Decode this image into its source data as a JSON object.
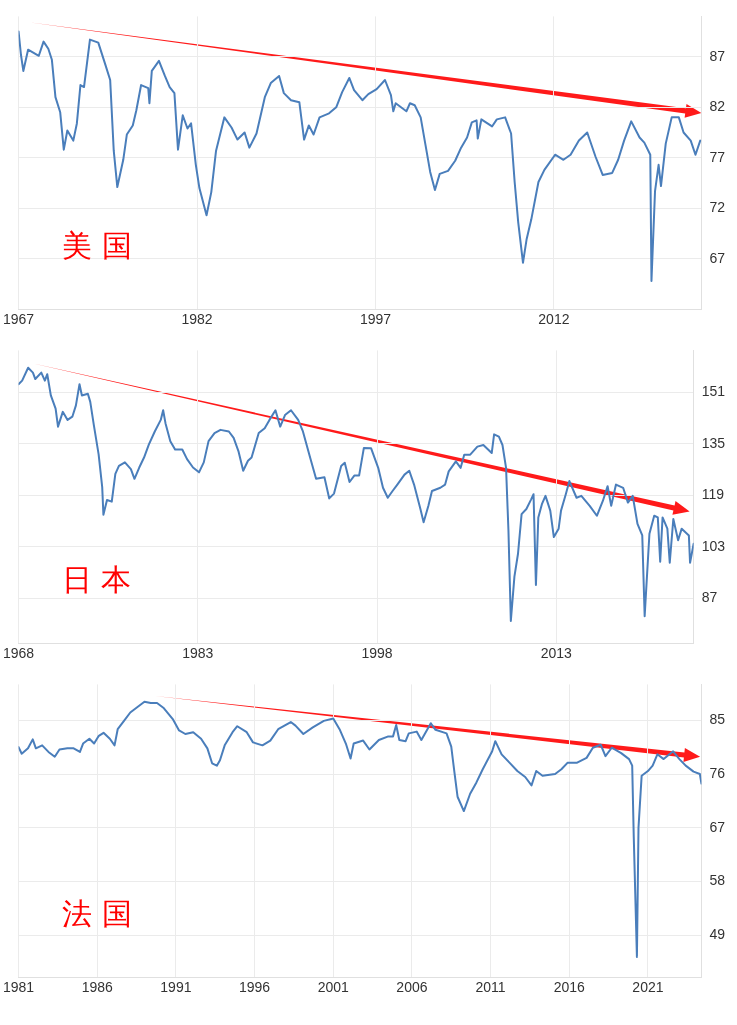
{
  "chart_data": [
    {
      "type": "line",
      "annotations": [
        "美 国"
      ],
      "xlim": [
        1967,
        2024.4
      ],
      "xticks": [
        1967,
        1982,
        1997,
        2012
      ],
      "ylim": [
        62,
        91
      ],
      "yticks": [
        67,
        72,
        77,
        82,
        87
      ],
      "grid": true,
      "legend": false,
      "marker": "none",
      "line_style": "solid",
      "series": [
        {
          "color": "#4a7ebb",
          "x": [
            1967.0,
            1967.2,
            1967.4,
            1967.8,
            1968.7,
            1969.1,
            1969.5,
            1969.8,
            1970.1,
            1970.5,
            1970.8,
            1971.1,
            1971.6,
            1971.9,
            1972.2,
            1972.5,
            1973.0,
            1973.7,
            1974.3,
            1974.7,
            1975.0,
            1975.3,
            1975.8,
            1976.1,
            1976.6,
            1976.9,
            1977.3,
            1977.9,
            1978.0,
            1978.2,
            1978.8,
            1979.3,
            1979.7,
            1980.1,
            1980.4,
            1980.8,
            1981.2,
            1981.5,
            1981.9,
            1982.2,
            1982.8,
            1983.2,
            1983.6,
            1984.3,
            1984.9,
            1985.4,
            1986.0,
            1986.4,
            1987.0,
            1987.7,
            1988.2,
            1988.9,
            1989.3,
            1989.9,
            1990.6,
            1991.0,
            1991.4,
            1991.8,
            1992.3,
            1993.1,
            1993.7,
            1994.2,
            1994.8,
            1995.2,
            1995.9,
            1996.4,
            1997.1,
            1997.8,
            1998.3,
            1998.5,
            1998.7,
            1999.6,
            1999.9,
            2000.3,
            2000.8,
            2001.2,
            2001.6,
            2002.0,
            2002.4,
            2003.1,
            2003.7,
            2004.2,
            2004.7,
            2005.1,
            2005.5,
            2005.6,
            2005.9,
            2006.8,
            2007.2,
            2007.9,
            2008.4,
            2008.7,
            2009.0,
            2009.4,
            2009.7,
            2010.1,
            2010.7,
            2011.2,
            2012.1,
            2012.8,
            2013.4,
            2014.1,
            2014.8,
            2015.5,
            2016.1,
            2016.9,
            2017.4,
            2017.9,
            2018.5,
            2019.2,
            2019.6,
            2020.1,
            2020.2,
            2020.5,
            2020.8,
            2021.0,
            2021.4,
            2021.9,
            2022.5,
            2022.9,
            2023.5,
            2023.9,
            2024.3
          ],
          "values": [
            89.5,
            87.2,
            85.6,
            87.7,
            87.1,
            88.5,
            87.8,
            86.7,
            83.0,
            81.5,
            77.8,
            79.7,
            78.7,
            80.4,
            84.2,
            84.0,
            88.7,
            88.4,
            86.2,
            84.7,
            77.7,
            74.1,
            76.8,
            79.3,
            80.2,
            81.7,
            84.2,
            83.9,
            82.4,
            85.6,
            86.6,
            85.1,
            84.0,
            83.4,
            77.8,
            81.2,
            79.9,
            80.4,
            76.3,
            74.0,
            71.3,
            73.6,
            77.7,
            81.0,
            80.0,
            78.8,
            79.5,
            78.0,
            79.4,
            83.0,
            84.4,
            85.1,
            83.4,
            82.7,
            82.5,
            78.8,
            80.2,
            79.3,
            81.0,
            81.4,
            82.0,
            83.5,
            84.9,
            83.7,
            82.7,
            83.3,
            83.8,
            84.7,
            83.2,
            81.6,
            82.4,
            81.6,
            82.4,
            82.2,
            81.0,
            78.3,
            75.6,
            73.8,
            75.4,
            75.7,
            76.7,
            78.0,
            79.0,
            80.5,
            80.7,
            78.9,
            80.8,
            80.1,
            80.8,
            81.0,
            79.4,
            74.6,
            70.6,
            66.6,
            68.9,
            70.9,
            74.6,
            75.8,
            77.3,
            76.8,
            77.3,
            78.7,
            79.5,
            77.1,
            75.3,
            75.5,
            76.8,
            78.7,
            80.6,
            79.0,
            78.5,
            77.3,
            64.8,
            73.7,
            76.3,
            74.2,
            78.4,
            81.0,
            81.0,
            79.5,
            78.7,
            77.3,
            78.7
          ]
        }
      ]
    },
    {
      "type": "line",
      "annotations": [
        "日 本"
      ],
      "xlim": [
        1968,
        2024.5
      ],
      "xticks": [
        1968,
        1983,
        1998,
        2013
      ],
      "ylim": [
        73,
        164
      ],
      "yticks": [
        87,
        103,
        119,
        135,
        151
      ],
      "grid": true,
      "legend": false,
      "marker": "none",
      "line_style": "solid",
      "series": [
        {
          "color": "#4a7ebb",
          "x": [
            1968.0,
            1968.3,
            1968.8,
            1969.2,
            1969.4,
            1969.9,
            1970.2,
            1970.4,
            1970.7,
            1971.1,
            1971.3,
            1971.7,
            1972.1,
            1972.5,
            1972.8,
            1973.1,
            1973.3,
            1973.8,
            1974.0,
            1974.3,
            1974.7,
            1975.0,
            1975.1,
            1975.4,
            1975.8,
            1976.1,
            1976.4,
            1976.9,
            1977.4,
            1977.7,
            1978.1,
            1978.5,
            1978.9,
            1979.4,
            1979.9,
            1980.1,
            1980.3,
            1980.7,
            1981.1,
            1981.7,
            1982.1,
            1982.6,
            1983.1,
            1983.5,
            1983.9,
            1984.4,
            1984.9,
            1985.6,
            1986.0,
            1986.4,
            1986.8,
            1987.2,
            1987.5,
            1988.1,
            1988.6,
            1989.0,
            1989.5,
            1989.9,
            1990.3,
            1990.8,
            1991.4,
            1991.8,
            1992.4,
            1992.9,
            1993.6,
            1994.0,
            1994.4,
            1995.0,
            1995.3,
            1995.7,
            1996.1,
            1996.5,
            1996.9,
            1997.5,
            1998.1,
            1998.5,
            1998.9,
            1999.3,
            1999.7,
            2000.3,
            2000.7,
            2001.1,
            2001.6,
            2001.9,
            2002.3,
            2002.6,
            2003.3,
            2003.7,
            2004.0,
            2004.6,
            2005.0,
            2005.3,
            2005.8,
            2006.4,
            2006.9,
            2007.6,
            2007.8,
            2008.2,
            2008.5,
            2008.8,
            2009.0,
            2009.2,
            2009.5,
            2009.8,
            2010.1,
            2010.5,
            2010.9,
            2011.1,
            2011.3,
            2011.5,
            2011.8,
            2012.1,
            2012.5,
            2012.8,
            2013.2,
            2013.4,
            2013.8,
            2014.1,
            2014.7,
            2015.1,
            2015.8,
            2016.4,
            2016.9,
            2017.3,
            2017.6,
            2018.0,
            2018.6,
            2019.0,
            2019.4,
            2019.8,
            2020.2,
            2020.4,
            2020.8,
            2021.2,
            2021.5,
            2021.7,
            2021.9,
            2022.3,
            2022.5,
            2022.8,
            2023.2,
            2023.5,
            2024.1,
            2024.2,
            2024.5
          ],
          "values": [
            153.5,
            154.6,
            158.6,
            157.1,
            155.1,
            157.1,
            154.6,
            156.6,
            150.0,
            145.9,
            140.3,
            144.9,
            142.4,
            143.4,
            146.9,
            153.5,
            150.0,
            150.5,
            148.0,
            140.8,
            131.7,
            121.5,
            112.9,
            117.5,
            117.0,
            125.6,
            128.1,
            129.2,
            127.1,
            124.1,
            127.6,
            130.7,
            134.7,
            138.8,
            142.4,
            145.4,
            141.3,
            135.8,
            133.2,
            133.2,
            130.2,
            127.6,
            126.1,
            129.2,
            135.8,
            138.3,
            139.3,
            138.8,
            136.8,
            132.7,
            126.6,
            129.7,
            130.7,
            138.3,
            139.8,
            142.4,
            145.4,
            140.3,
            143.9,
            145.4,
            142.4,
            138.8,
            130.7,
            124.1,
            124.6,
            118.0,
            119.5,
            128.1,
            129.1,
            123.1,
            125.1,
            125.1,
            133.7,
            133.6,
            127.5,
            121.3,
            118.2,
            120.3,
            122.3,
            125.4,
            126.6,
            122.3,
            115.2,
            110.6,
            115.7,
            120.3,
            121.3,
            122.3,
            126.4,
            129.5,
            127.5,
            131.6,
            131.6,
            134.1,
            134.6,
            132.1,
            137.9,
            137.2,
            134.6,
            127.5,
            108.0,
            79.9,
            93.7,
            100.8,
            113.1,
            114.7,
            117.7,
            119.3,
            91.1,
            112.1,
            116.2,
            118.8,
            114.2,
            106.0,
            108.6,
            114.2,
            119.3,
            123.4,
            118.2,
            118.8,
            115.7,
            112.6,
            117.2,
            121.8,
            115.7,
            122.3,
            121.3,
            116.7,
            118.8,
            110.1,
            106.5,
            81.4,
            107.0,
            112.6,
            112.1,
            98.3,
            112.1,
            108.6,
            98.0,
            111.6,
            105.0,
            108.6,
            106.5,
            98.0,
            103.9
          ]
        }
      ]
    },
    {
      "type": "line",
      "annotations": [
        "法 国"
      ],
      "xlim": [
        1981,
        2024.4
      ],
      "xticks": [
        1981,
        1986,
        1991,
        1996,
        2001,
        2006,
        2011,
        2016,
        2021
      ],
      "ylim": [
        42,
        91
      ],
      "yticks": [
        49,
        58,
        67,
        76,
        85
      ],
      "grid": true,
      "legend": false,
      "marker": "none",
      "line_style": "solid",
      "series": [
        {
          "color": "#4a7ebb",
          "x": [
            1981.0,
            1981.2,
            1981.6,
            1981.9,
            1982.1,
            1982.5,
            1982.9,
            1983.3,
            1983.6,
            1984.1,
            1984.5,
            1984.9,
            1985.1,
            1985.5,
            1985.8,
            1986.1,
            1986.4,
            1986.8,
            1987.1,
            1987.3,
            1987.7,
            1988.1,
            1988.6,
            1989.0,
            1989.4,
            1989.8,
            1990.2,
            1990.8,
            1991.2,
            1991.6,
            1992.1,
            1992.6,
            1993.0,
            1993.3,
            1993.6,
            1993.8,
            1994.1,
            1994.6,
            1994.9,
            1995.5,
            1995.9,
            1996.5,
            1997.0,
            1997.5,
            1998.3,
            1998.6,
            1999.1,
            1999.7,
            2000.4,
            2001.0,
            2001.4,
            2001.8,
            2002.1,
            2002.3,
            2002.9,
            2003.3,
            2003.9,
            2004.5,
            2004.8,
            2005.0,
            2005.2,
            2005.6,
            2005.8,
            2006.3,
            2006.6,
            2007.2,
            2007.5,
            2008.2,
            2008.5,
            2008.7,
            2008.9,
            2009.3,
            2009.7,
            2010.1,
            2010.5,
            2011.1,
            2011.3,
            2011.7,
            2012.2,
            2012.7,
            2013.2,
            2013.6,
            2013.9,
            2014.3,
            2015.1,
            2015.5,
            2015.9,
            2016.5,
            2017.1,
            2017.5,
            2018.0,
            2018.3,
            2018.7,
            2019.3,
            2019.8,
            2020.0,
            2020.1,
            2020.3,
            2020.4,
            2020.6,
            2021.0,
            2021.3,
            2021.6,
            2022.0,
            2022.6,
            2023.0,
            2023.4,
            2023.9,
            2024.3,
            2024.4
          ],
          "values": [
            80.5,
            79.4,
            80.3,
            81.8,
            80.3,
            80.8,
            79.7,
            78.9,
            80.1,
            80.3,
            80.3,
            79.7,
            81.1,
            81.9,
            81.1,
            82.4,
            82.9,
            81.9,
            80.8,
            83.5,
            84.9,
            86.3,
            87.3,
            88.1,
            87.9,
            87.9,
            87.1,
            85.2,
            83.3,
            82.7,
            83.0,
            81.9,
            80.3,
            77.8,
            77.4,
            78.3,
            80.8,
            83.0,
            84.0,
            83.0,
            81.3,
            80.8,
            81.6,
            83.5,
            84.7,
            84.1,
            82.7,
            83.8,
            84.9,
            85.3,
            83.5,
            81.1,
            78.6,
            81.1,
            81.6,
            80.1,
            81.7,
            82.3,
            82.3,
            84.2,
            81.7,
            81.5,
            82.8,
            83.1,
            81.7,
            84.5,
            83.4,
            82.8,
            80.6,
            76.3,
            72.2,
            69.8,
            72.7,
            74.6,
            76.8,
            79.8,
            81.5,
            79.3,
            77.9,
            76.5,
            75.5,
            74.1,
            76.5,
            75.7,
            76.0,
            76.8,
            77.9,
            77.9,
            78.7,
            80.4,
            80.9,
            79.0,
            80.4,
            79.5,
            78.5,
            77.4,
            65.4,
            45.4,
            67.0,
            75.7,
            76.5,
            77.4,
            79.3,
            78.5,
            79.8,
            78.5,
            77.4,
            76.4,
            76.0,
            74.4
          ]
        }
      ]
    }
  ]
}
